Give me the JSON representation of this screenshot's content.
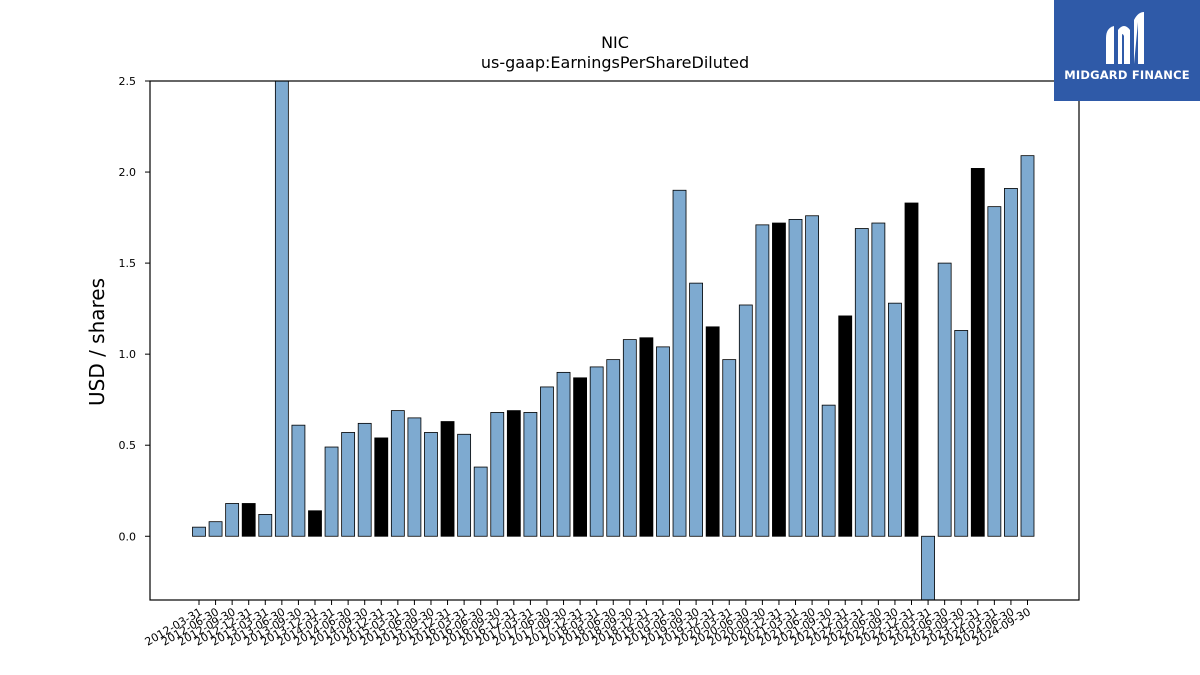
{
  "chart_data": {
    "type": "bar",
    "title": "NIC",
    "subtitle": "us-gaap:EarningsPerShareDiluted",
    "ylabel": "USD / shares",
    "xlabel": "",
    "ylim": [
      -0.35,
      2.5
    ],
    "yticks": [
      "0.0",
      "0.5",
      "1.0",
      "1.5",
      "2.0",
      "2.5"
    ],
    "grid": false,
    "colors": {
      "quarter": "#7eaad0",
      "annual": "#000000",
      "edge": "#000000"
    },
    "categories": [
      "2012-03-31",
      "2012-06-30",
      "2012-09-30",
      "2012-12-31",
      "2013-03-31",
      "2013-06-30",
      "2013-09-30",
      "2013-12-31",
      "2014-03-31",
      "2014-06-30",
      "2014-09-30",
      "2014-12-31",
      "2015-03-31",
      "2015-06-30",
      "2015-09-30",
      "2015-12-31",
      "2016-03-31",
      "2016-06-30",
      "2016-09-30",
      "2016-12-31",
      "2017-03-31",
      "2017-06-30",
      "2017-09-30",
      "2017-12-31",
      "2018-03-31",
      "2018-06-30",
      "2018-09-30",
      "2018-12-31",
      "2019-03-31",
      "2019-06-30",
      "2019-09-30",
      "2019-12-31",
      "2020-03-31",
      "2020-06-30",
      "2020-09-30",
      "2020-12-31",
      "2021-03-31",
      "2021-06-30",
      "2021-09-30",
      "2021-12-31",
      "2022-03-31",
      "2022-06-30",
      "2022-09-30",
      "2022-12-31",
      "2023-03-31",
      "2023-06-30",
      "2023-09-30",
      "2023-12-31",
      "2024-03-31",
      "2024-06-30",
      "2024-09-30"
    ],
    "values": [
      0.05,
      0.08,
      0.18,
      0.18,
      0.12,
      2.57,
      0.61,
      0.14,
      0.49,
      0.57,
      0.62,
      0.54,
      0.69,
      0.65,
      0.57,
      0.63,
      0.56,
      0.38,
      0.68,
      0.69,
      0.68,
      0.82,
      0.9,
      0.87,
      0.93,
      0.97,
      1.08,
      1.09,
      1.04,
      1.9,
      1.39,
      1.15,
      0.97,
      1.27,
      1.71,
      1.72,
      1.74,
      1.76,
      0.72,
      1.21,
      1.69,
      1.72,
      1.28,
      1.83,
      -0.4,
      1.5,
      1.13,
      2.02,
      1.81,
      1.91,
      2.09
    ],
    "annual_flags": [
      false,
      false,
      false,
      true,
      false,
      false,
      false,
      true,
      false,
      false,
      false,
      true,
      false,
      false,
      false,
      true,
      false,
      false,
      false,
      true,
      false,
      false,
      false,
      true,
      false,
      false,
      false,
      true,
      false,
      false,
      false,
      true,
      false,
      false,
      false,
      true,
      false,
      false,
      false,
      true,
      false,
      false,
      false,
      true,
      false,
      false,
      false,
      true,
      false,
      false,
      false
    ]
  },
  "logo": {
    "text": "MIDGARD FINANCE",
    "background": "#2f5aa8"
  }
}
